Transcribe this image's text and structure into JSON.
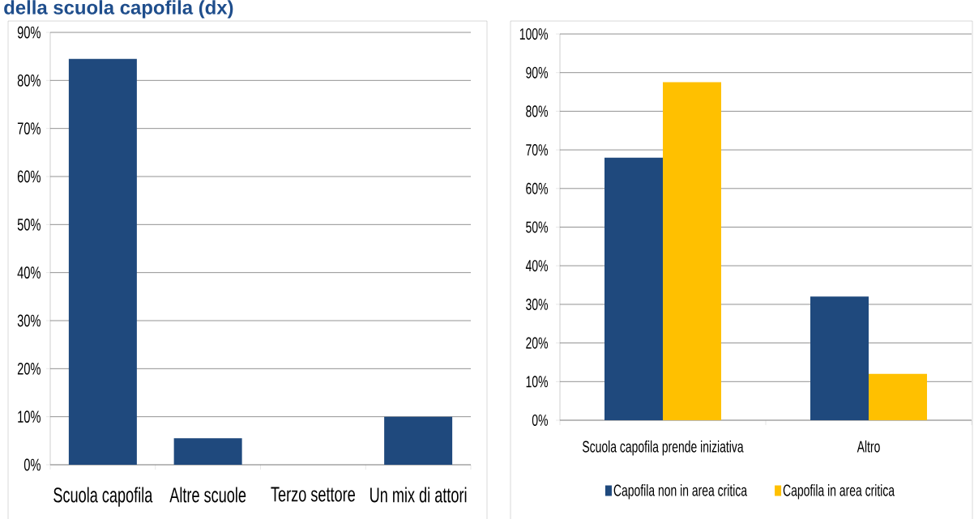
{
  "chart_data": [
    {
      "type": "bar",
      "title": "della scuola capofila (dx)",
      "categories": [
        "Scuola capofila",
        "Altre scuole",
        "Terzo settore",
        "Un mix di attori"
      ],
      "values": [
        84.5,
        5.5,
        0,
        10
      ],
      "color": "#1f497d",
      "ylim": [
        0,
        90
      ],
      "yticks": [
        {
          "value": 0,
          "label": "0%"
        },
        {
          "value": 10,
          "label": "10%"
        },
        {
          "value": 20,
          "label": "20%"
        },
        {
          "value": 30,
          "label": "30%"
        },
        {
          "value": 40,
          "label": "40%"
        },
        {
          "value": 50,
          "label": "50%"
        },
        {
          "value": 60,
          "label": "60%"
        },
        {
          "value": 70,
          "label": "70%"
        },
        {
          "value": 80,
          "label": "80%"
        },
        {
          "value": 90,
          "label": "90%"
        }
      ],
      "grid": "y"
    },
    {
      "type": "bar",
      "categories": [
        "Scuola capofila prende iniziativa",
        "Altro"
      ],
      "series": [
        {
          "name": "Capofila non in area critica",
          "color": "#1f497d",
          "values": [
            68,
            32
          ]
        },
        {
          "name": "Capofila in area critica",
          "color": "#ffc000",
          "values": [
            87.5,
            12
          ]
        }
      ],
      "ylim": [
        0,
        100
      ],
      "yticks": [
        {
          "value": 0,
          "label": "0%"
        },
        {
          "value": 10,
          "label": "10%"
        },
        {
          "value": 20,
          "label": "20%"
        },
        {
          "value": 30,
          "label": "30%"
        },
        {
          "value": 40,
          "label": "40%"
        },
        {
          "value": 50,
          "label": "50%"
        },
        {
          "value": 60,
          "label": "60%"
        },
        {
          "value": 70,
          "label": "70%"
        },
        {
          "value": 80,
          "label": "80%"
        },
        {
          "value": 90,
          "label": "90%"
        },
        {
          "value": 100,
          "label": "100%"
        }
      ],
      "grid": "y",
      "legend": "bottom"
    }
  ]
}
